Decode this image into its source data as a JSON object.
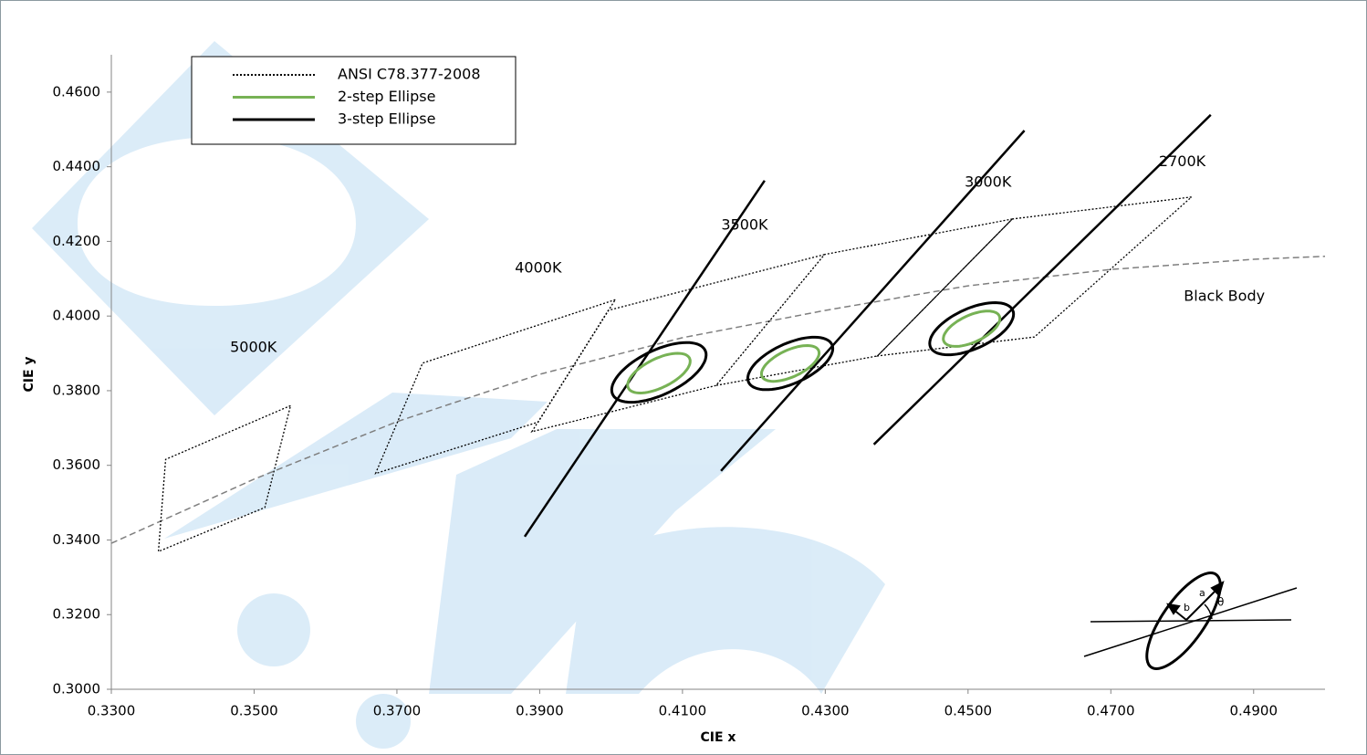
{
  "chart_data": {
    "type": "line",
    "xlabel": "CIE x",
    "ylabel": "CIE y",
    "xlim": [
      0.33,
      0.5
    ],
    "ylim": [
      0.3,
      0.47
    ],
    "xticks": [
      {
        "value": 0.33,
        "label": "0.3300"
      },
      {
        "value": 0.35,
        "label": "0.3500"
      },
      {
        "value": 0.37,
        "label": "0.3700"
      },
      {
        "value": 0.39,
        "label": "0.3900"
      },
      {
        "value": 0.41,
        "label": "0.4100"
      },
      {
        "value": 0.43,
        "label": "0.4300"
      },
      {
        "value": 0.45,
        "label": "0.4500"
      },
      {
        "value": 0.47,
        "label": "0.4700"
      },
      {
        "value": 0.49,
        "label": "0.4900"
      }
    ],
    "yticks": [
      {
        "value": 0.3,
        "label": "0.3000"
      },
      {
        "value": 0.32,
        "label": "0.3200"
      },
      {
        "value": 0.34,
        "label": "0.3400"
      },
      {
        "value": 0.36,
        "label": "0.3600"
      },
      {
        "value": 0.38,
        "label": "0.3800"
      },
      {
        "value": 0.4,
        "label": "0.4000"
      },
      {
        "value": 0.42,
        "label": "0.4200"
      },
      {
        "value": 0.44,
        "label": "0.4400"
      },
      {
        "value": 0.46,
        "label": "0.4600"
      }
    ],
    "legend_position": "upper left",
    "series": [
      {
        "name": "ANSI C78.377-2008",
        "color": "#000000",
        "dash": "dotted",
        "x": [
          0.4813,
          0.4562,
          0.4373,
          0.4593,
          0.4813,
          null,
          0.4562,
          0.4299,
          0.4147,
          0.4373,
          0.4562,
          null,
          0.4299,
          0.3996,
          0.3889,
          0.4147,
          0.4299,
          null,
          0.4006,
          0.3736,
          0.367,
          0.3898,
          0.4006,
          null,
          0.3551,
          0.3376,
          0.3366,
          0.3515,
          0.3551
        ],
        "y": [
          0.4319,
          0.426,
          0.3893,
          0.3944,
          0.4319,
          null,
          0.426,
          0.4165,
          0.3814,
          0.3893,
          0.426,
          null,
          0.4165,
          0.4015,
          0.369,
          0.3814,
          0.4165,
          null,
          0.4044,
          0.3874,
          0.3578,
          0.3716,
          0.4044,
          null,
          0.376,
          0.3616,
          0.3369,
          0.3487,
          0.376
        ]
      },
      {
        "name": "2-step Ellipse",
        "color": "#77b255",
        "ellipses": {
          "x": [
            0.4505,
            0.4251,
            0.4067
          ],
          "y": [
            0.3966,
            0.3873,
            0.3847
          ],
          "a": [
            0.0055,
            0.0056,
            0.0062
          ],
          "b": [
            0.0028,
            0.0028,
            0.003
          ],
          "theta": [
            53.7,
            53.2,
            54.0
          ]
        }
      },
      {
        "name": "3-step Ellipse",
        "color": "#000000",
        "ellipses": {
          "x": [
            0.4505,
            0.4251,
            0.4067
          ],
          "y": [
            0.3966,
            0.3873,
            0.3849
          ],
          "a": [
            0.0081,
            0.0082,
            0.0093
          ],
          "b": [
            0.0042,
            0.0042,
            0.0046
          ],
          "theta": [
            53.7,
            53.2,
            54.0
          ]
        }
      }
    ],
    "isotherms": {
      "color": "#000000",
      "x": [
        0.3879,
        0.4215,
        null,
        0.4154,
        0.4579,
        null,
        0.4368,
        0.484
      ],
      "y": [
        0.3409,
        0.4363,
        null,
        0.3585,
        0.4497,
        null,
        0.3656,
        0.4539
      ]
    },
    "black_body": {
      "color": "#7f7f7f",
      "dash": "dashed",
      "x": [
        0.33,
        0.35,
        0.37,
        0.39,
        0.41,
        0.43,
        0.45,
        0.47,
        0.49,
        0.5
      ],
      "y": [
        0.3391,
        0.3563,
        0.3717,
        0.3844,
        0.3942,
        0.4015,
        0.4081,
        0.4125,
        0.4152,
        0.416
      ]
    },
    "annotations": [
      {
        "text": "2700K",
        "x": 0.48,
        "y": 0.4412
      },
      {
        "text": "3000K",
        "x": 0.4528,
        "y": 0.4358
      },
      {
        "text": "3500K",
        "x": 0.4187,
        "y": 0.4243
      },
      {
        "text": "4000K",
        "x": 0.3898,
        "y": 0.4128
      },
      {
        "text": "5000K",
        "x": 0.3499,
        "y": 0.3915
      },
      {
        "text": "Black Body",
        "x": 0.4859,
        "y": 0.4052
      }
    ],
    "inset_labels": [
      "a",
      "b",
      "θ"
    ]
  }
}
